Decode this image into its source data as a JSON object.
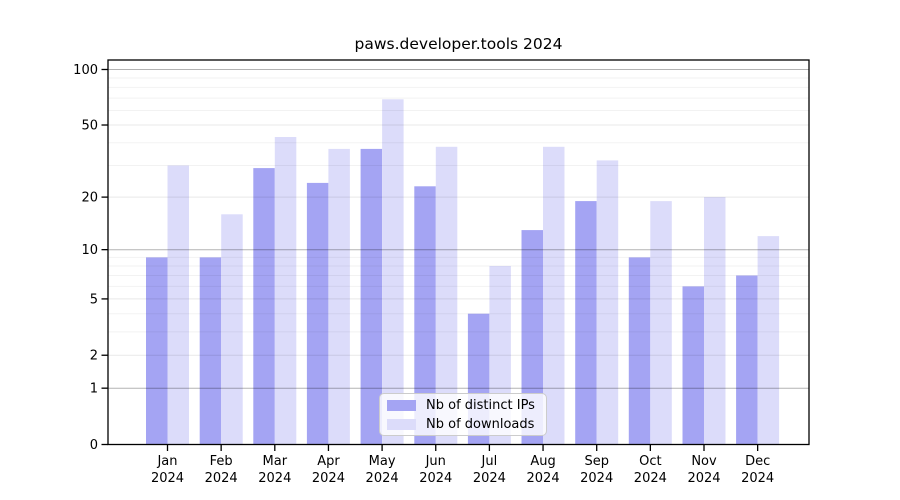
{
  "chart_data": {
    "type": "bar",
    "title": "paws.developer.tools 2024",
    "categories": [
      {
        "month": "Jan",
        "year": "2024"
      },
      {
        "month": "Feb",
        "year": "2024"
      },
      {
        "month": "Mar",
        "year": "2024"
      },
      {
        "month": "Apr",
        "year": "2024"
      },
      {
        "month": "May",
        "year": "2024"
      },
      {
        "month": "Jun",
        "year": "2024"
      },
      {
        "month": "Jul",
        "year": "2024"
      },
      {
        "month": "Aug",
        "year": "2024"
      },
      {
        "month": "Sep",
        "year": "2024"
      },
      {
        "month": "Oct",
        "year": "2024"
      },
      {
        "month": "Nov",
        "year": "2024"
      },
      {
        "month": "Dec",
        "year": "2024"
      }
    ],
    "series": [
      {
        "name": "Nb of distinct IPs",
        "color": "#a4a4f3",
        "values": [
          9,
          9,
          29,
          24,
          37,
          23,
          4,
          13,
          19,
          9,
          6,
          7
        ]
      },
      {
        "name": "Nb of downloads",
        "color": "#dcdcfa",
        "values": [
          30,
          16,
          43,
          37,
          69,
          38,
          8,
          38,
          32,
          19,
          20,
          12
        ]
      }
    ],
    "y_axis": {
      "scale": "log1p",
      "ticks": [
        0,
        1,
        2,
        5,
        10,
        20,
        50,
        100
      ],
      "decade_ticks": [
        1,
        10,
        100
      ],
      "minor_ticks": [
        3,
        4,
        6,
        7,
        8,
        9,
        30,
        40,
        60,
        70,
        80,
        90
      ],
      "ylim": [
        0,
        113
      ]
    },
    "xlabel": "",
    "ylabel": "",
    "grid": true,
    "legend_position": "bottom-center"
  }
}
